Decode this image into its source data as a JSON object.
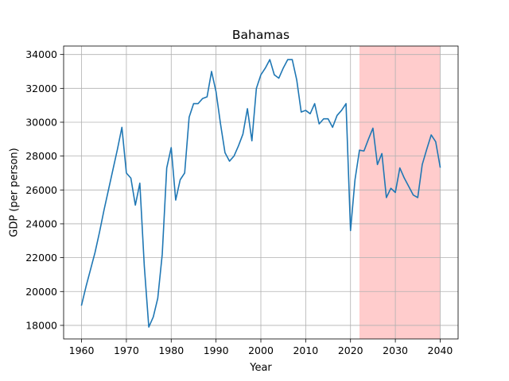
{
  "chart_data": {
    "type": "line",
    "title": "Bahamas",
    "xlabel": "Year",
    "ylabel": "GDP (per person)",
    "xlim": [
      1956,
      2044
    ],
    "ylim": [
      17200,
      34500
    ],
    "grid": true,
    "x_ticks": [
      1960,
      1970,
      1980,
      1990,
      2000,
      2010,
      2020,
      2030,
      2040
    ],
    "y_ticks": [
      18000,
      20000,
      22000,
      24000,
      26000,
      28000,
      30000,
      32000,
      34000
    ],
    "highlight": {
      "from": 2022,
      "to": 2040,
      "color": "#ffcccc"
    },
    "series": [
      {
        "color": "#1f77b4",
        "x": [
          1960,
          1961,
          1962,
          1963,
          1964,
          1965,
          1966,
          1967,
          1968,
          1969,
          1970,
          1971,
          1972,
          1973,
          1974,
          1975,
          1976,
          1977,
          1978,
          1979,
          1980,
          1981,
          1982,
          1983,
          1984,
          1985,
          1986,
          1987,
          1988,
          1989,
          1990,
          1991,
          1992,
          1993,
          1994,
          1995,
          1996,
          1997,
          1998,
          1999,
          2000,
          2001,
          2002,
          2003,
          2004,
          2005,
          2006,
          2007,
          2008,
          2009,
          2010,
          2011,
          2012,
          2013,
          2014,
          2015,
          2016,
          2017,
          2018,
          2019,
          2020,
          2021,
          2022,
          2023,
          2024,
          2025,
          2026,
          2027,
          2028,
          2029,
          2030,
          2031,
          2032,
          2033,
          2034,
          2035,
          2036,
          2037,
          2038,
          2039,
          2040
        ],
        "y": [
          19200,
          20300,
          21300,
          22300,
          23500,
          24800,
          26000,
          27200,
          28400,
          29700,
          27000,
          26700,
          25100,
          26400,
          21500,
          17900,
          18500,
          19600,
          22200,
          27300,
          28500,
          25400,
          26600,
          27000,
          30300,
          31100,
          31100,
          31400,
          31500,
          33000,
          31800,
          29900,
          28200,
          27700,
          28000,
          28600,
          29300,
          30800,
          28900,
          32000,
          32800,
          33200,
          33700,
          32800,
          32600,
          33200,
          33700,
          33700,
          32500,
          30600,
          30700,
          30500,
          31100,
          29900,
          30200,
          30200,
          29700,
          30400,
          30700,
          31100,
          23600,
          26600,
          28350,
          28300,
          29000,
          29650,
          27500,
          28150,
          25550,
          26100,
          25850,
          27300,
          26700,
          26200,
          25700,
          25550,
          27500,
          28400,
          29250,
          28850,
          27350
        ]
      }
    ]
  }
}
